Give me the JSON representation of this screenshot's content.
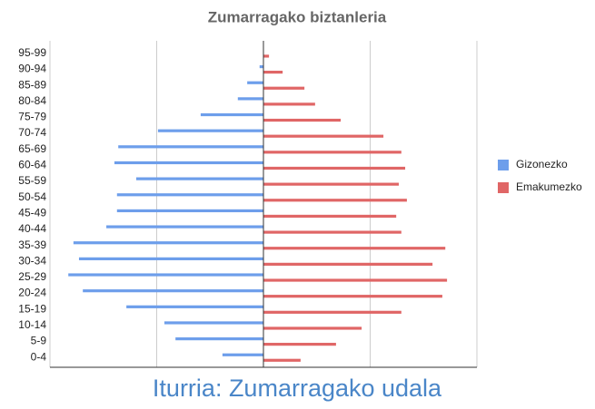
{
  "chart_data": {
    "type": "pyramid",
    "title": "Zumarragako biztanleria",
    "categories": [
      "95-99",
      "90-94",
      "85-89",
      "80-84",
      "75-79",
      "70-74",
      "65-69",
      "60-64",
      "55-59",
      "50-54",
      "45-49",
      "40-44",
      "35-39",
      "30-34",
      "25-29",
      "20-24",
      "15-19",
      "10-14",
      "5-9",
      "0-4"
    ],
    "series": [
      {
        "name": "Gizonezko",
        "color": "#6d9eeb",
        "values": [
          0,
          -9,
          -38,
          -60,
          -147,
          -247,
          -340,
          -349,
          -298,
          -343,
          -343,
          -368,
          -445,
          -432,
          -457,
          -423,
          -321,
          -232,
          -206,
          -96
        ]
      },
      {
        "name": "Emakumezko",
        "color": "#e06666",
        "values": [
          13,
          45,
          96,
          121,
          181,
          281,
          323,
          332,
          317,
          336,
          311,
          323,
          426,
          396,
          430,
          419,
          323,
          230,
          170,
          87
        ]
      }
    ],
    "xlim": [
      -500,
      500
    ],
    "xticks": [
      -500,
      -250,
      0,
      250,
      500
    ],
    "grid": true,
    "legend": "right",
    "source": "Iturria: Zumarragako udala"
  }
}
